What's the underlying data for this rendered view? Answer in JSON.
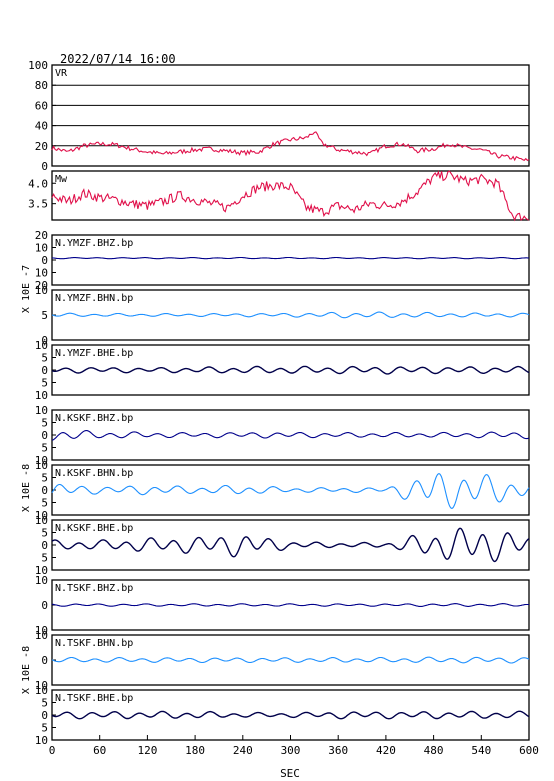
{
  "header": {
    "datetime": "2022/07/14 16:00"
  },
  "xaxis": {
    "label": "SEC",
    "ticks": [
      "0",
      "60",
      "120",
      "180",
      "240",
      "300",
      "360",
      "420",
      "480",
      "540",
      "600"
    ],
    "range": [
      0,
      600
    ]
  },
  "colors": {
    "vr": "#e0104a",
    "mw": "#e0104a",
    "dark_blue": "#00008b",
    "light_blue": "#1e90ff",
    "trace_black": "#00004a",
    "grid": "#000000"
  },
  "chart_data": [
    {
      "type": "line",
      "panel": "VR",
      "ylim": [
        0,
        100
      ],
      "yticks": [
        "0",
        "20",
        "40",
        "60",
        "80",
        "100"
      ],
      "grid": true,
      "x": [
        0,
        20,
        40,
        60,
        80,
        100,
        120,
        140,
        160,
        180,
        200,
        220,
        240,
        260,
        280,
        300,
        320,
        330,
        340,
        360,
        380,
        400,
        420,
        440,
        460,
        480,
        500,
        520,
        540,
        560,
        580,
        600
      ],
      "values": [
        18,
        14,
        20,
        22,
        21,
        17,
        14,
        12,
        14,
        16,
        17,
        15,
        13,
        14,
        22,
        26,
        28,
        34,
        22,
        16,
        14,
        12,
        20,
        22,
        15,
        17,
        22,
        18,
        16,
        10,
        8,
        5
      ]
    },
    {
      "type": "line",
      "panel": "Mw",
      "ylim": [
        3.1,
        4.3
      ],
      "yticks": [
        "3.5",
        "4.0"
      ],
      "x": [
        0,
        20,
        40,
        60,
        80,
        100,
        120,
        140,
        160,
        180,
        200,
        220,
        240,
        260,
        280,
        300,
        320,
        340,
        360,
        380,
        400,
        420,
        440,
        460,
        480,
        500,
        520,
        540,
        560,
        580,
        600
      ],
      "values": [
        3.7,
        3.55,
        3.75,
        3.65,
        3.6,
        3.5,
        3.45,
        3.55,
        3.7,
        3.6,
        3.5,
        3.4,
        3.7,
        3.9,
        3.95,
        3.9,
        3.4,
        3.3,
        3.45,
        3.35,
        3.5,
        3.45,
        3.55,
        3.8,
        4.15,
        4.2,
        4.05,
        4.1,
        4.0,
        3.2,
        3.15
      ]
    },
    {
      "type": "line",
      "panel": "N.YMZF.BHZ.bp",
      "title": "N.YMZF.BHZ.bp",
      "ylim": [
        -20,
        20
      ],
      "yticks": [
        "20",
        "10",
        "0",
        "10",
        "20"
      ],
      "style": "dark_blue",
      "amp": [
        0.5,
        0.5,
        0.5,
        0.5,
        0.5,
        0.5,
        0.5,
        0.5,
        0.5,
        0.5,
        0.5
      ]
    },
    {
      "type": "line",
      "panel": "N.YMZF.BHN.bp",
      "title": "N.YMZF.BHN.bp",
      "ylim": [
        -10,
        10
      ],
      "yticks": [
        "0",
        "5",
        "10"
      ],
      "style": "light_blue",
      "amp": [
        0.8,
        0.6,
        0.6,
        0.6,
        0.7,
        0.8,
        1.2,
        1.2,
        1.0,
        0.8,
        0.8
      ]
    },
    {
      "type": "line",
      "panel": "N.YMZF.BHE.bp",
      "title": "N.YMZF.BHE.bp",
      "ylim": [
        -10,
        10
      ],
      "yticks": [
        "10",
        "5",
        "0",
        "5",
        "10"
      ],
      "style": "trace_black",
      "amp": [
        1.2,
        1.2,
        1.0,
        1.2,
        1.4,
        1.5,
        1.5,
        1.6,
        1.4,
        1.4,
        1.4
      ]
    },
    {
      "type": "line",
      "panel": "N.KSKF.BHZ.bp",
      "title": "N.KSKF.BHZ.bp",
      "ylim": [
        -10,
        10
      ],
      "yticks": [
        "10",
        "5",
        "0",
        "5",
        "10"
      ],
      "style": "dark_blue",
      "amp": [
        2.5,
        1.5,
        1.2,
        1.0,
        1.2,
        1.2,
        1.0,
        1.0,
        1.0,
        1.2,
        1.5
      ]
    },
    {
      "type": "line",
      "panel": "N.KSKF.BHN.bp",
      "title": "N.KSKF.BHN.bp",
      "ylim": [
        -10,
        10
      ],
      "yticks": [
        "10",
        "5",
        "0",
        "5",
        "10"
      ],
      "style": "light_blue",
      "amp": [
        3.0,
        1.5,
        2.0,
        1.5,
        2.0,
        1.0,
        1.0,
        1.0,
        8.0,
        7.0,
        3.0
      ]
    },
    {
      "type": "line",
      "panel": "N.KSKF.BHE.bp",
      "title": "N.KSKF.BHE.bp",
      "ylim": [
        -10,
        10
      ],
      "yticks": [
        "10",
        "5",
        "0",
        "5",
        "10"
      ],
      "style": "trace_black",
      "amp": [
        2.0,
        2.0,
        3.0,
        3.5,
        5.0,
        1.5,
        1.0,
        1.0,
        6.0,
        8.0,
        4.0
      ]
    },
    {
      "type": "line",
      "panel": "N.TSKF.BHZ.bp",
      "title": "N.TSKF.BHZ.bp",
      "ylim": [
        -10,
        10
      ],
      "yticks": [
        "10",
        "0",
        "10"
      ],
      "style": "dark_blue",
      "amp": [
        0.5,
        0.5,
        0.5,
        0.5,
        0.5,
        0.5,
        0.5,
        0.5,
        0.6,
        0.6,
        0.5
      ]
    },
    {
      "type": "line",
      "panel": "N.TSKF.BHN.bp",
      "title": "N.TSKF.BHN.bp",
      "ylim": [
        -10,
        10
      ],
      "yticks": [
        "10",
        "0",
        "10"
      ],
      "style": "light_blue",
      "amp": [
        1.0,
        1.0,
        1.0,
        1.0,
        1.0,
        1.0,
        1.0,
        1.0,
        1.2,
        1.2,
        1.2
      ]
    },
    {
      "type": "line",
      "panel": "N.TSKF.BHE.bp",
      "title": "N.TSKF.BHE.bp",
      "ylim": [
        -10,
        10
      ],
      "yticks": [
        "10",
        "5",
        "0",
        "5",
        "10"
      ],
      "style": "trace_black",
      "amp": [
        1.5,
        1.5,
        1.5,
        1.5,
        1.0,
        1.0,
        1.5,
        1.5,
        1.5,
        1.5,
        1.5
      ]
    }
  ],
  "ylabels": [
    "X 10E -7",
    "X 10E -8",
    "X 10E -8",
    "X 10E -8"
  ]
}
